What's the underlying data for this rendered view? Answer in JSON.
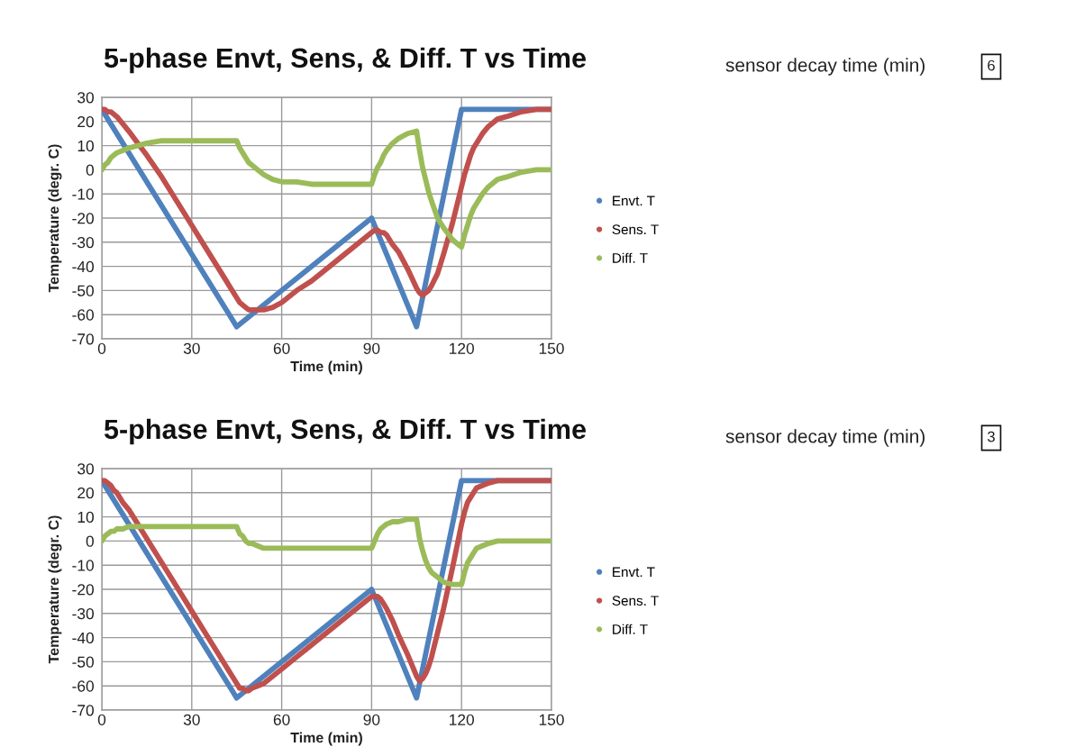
{
  "chart_data": [
    {
      "type": "line",
      "title": "5-phase Envt, Sens, & Diff. T vs Time",
      "xlabel": "Time (min)",
      "ylabel": "Temperature (degr. C)",
      "xlim": [
        0,
        150
      ],
      "ylim": [
        -70,
        30
      ],
      "xticks": [
        0,
        30,
        60,
        90,
        120,
        150
      ],
      "yticks": [
        -70,
        -60,
        -50,
        -40,
        -30,
        -20,
        -10,
        0,
        10,
        20,
        30
      ],
      "grid": true,
      "legend": "right",
      "series": [
        {
          "name": "Envt. T",
          "color": "#4f81bd",
          "x": [
            0,
            45,
            90,
            105,
            120,
            150
          ],
          "values": [
            25,
            -65,
            -20,
            -65,
            25,
            25
          ]
        },
        {
          "name": "Sens. T",
          "color": "#c0504d",
          "x": [
            0,
            1,
            2,
            3,
            4,
            5,
            7,
            9,
            12,
            15,
            20,
            25,
            30,
            35,
            40,
            45,
            46,
            47,
            48,
            49,
            50,
            52,
            54,
            57,
            60,
            65,
            70,
            80,
            90,
            91,
            92,
            93,
            94,
            95,
            97,
            99,
            102,
            105,
            106,
            107,
            108,
            109,
            110,
            112,
            114,
            117,
            120,
            121,
            122,
            123,
            124,
            125,
            127,
            129,
            132,
            135,
            140,
            145,
            150
          ],
          "values": [
            25,
            25,
            24,
            24,
            23,
            22,
            19,
            16,
            11,
            6,
            -3,
            -13,
            -23,
            -33,
            -43,
            -53,
            -55,
            -56,
            -57,
            -58,
            -58,
            -58,
            -58,
            -57,
            -55,
            -50,
            -46,
            -36,
            -26,
            -25,
            -25,
            -26,
            -26,
            -27,
            -31,
            -34,
            -41,
            -49,
            -51,
            -52,
            -51,
            -50,
            -48,
            -43,
            -35,
            -22,
            -7,
            -2,
            2,
            6,
            9,
            11,
            15,
            18,
            21,
            22,
            24,
            25,
            25
          ]
        },
        {
          "name": "Diff. T",
          "color": "#9bbb59",
          "x": [
            0,
            1,
            2,
            3,
            4,
            5,
            7,
            9,
            12,
            15,
            20,
            25,
            30,
            35,
            40,
            45,
            46,
            47,
            48,
            49,
            50,
            52,
            54,
            57,
            60,
            65,
            70,
            80,
            90,
            91,
            92,
            93,
            94,
            95,
            97,
            99,
            102,
            105,
            106,
            107,
            108,
            109,
            110,
            112,
            114,
            117,
            120,
            121,
            122,
            123,
            124,
            125,
            127,
            129,
            132,
            135,
            140,
            145,
            150
          ],
          "values": [
            0,
            2,
            3,
            5,
            6,
            7,
            8,
            9,
            10,
            11,
            12,
            12,
            12,
            12,
            12,
            12,
            9,
            7,
            5,
            3,
            2,
            0,
            -2,
            -4,
            -5,
            -5,
            -6,
            -6,
            -6,
            -2,
            1,
            3,
            6,
            8,
            11,
            13,
            15,
            16,
            8,
            1,
            -4,
            -9,
            -13,
            -20,
            -24,
            -29,
            -32,
            -27,
            -23,
            -19,
            -16,
            -14,
            -10,
            -7,
            -4,
            -3,
            -1,
            0,
            0
          ]
        }
      ],
      "annotations": [
        "sensor decay time (min)",
        "6"
      ]
    },
    {
      "type": "line",
      "title": "5-phase Envt, Sens, & Diff. T vs Time",
      "xlabel": "Time (min)",
      "ylabel": "Temperature (degr. C)",
      "xlim": [
        0,
        150
      ],
      "ylim": [
        -70,
        30
      ],
      "xticks": [
        0,
        30,
        60,
        90,
        120,
        150
      ],
      "yticks": [
        -70,
        -60,
        -50,
        -40,
        -30,
        -20,
        -10,
        0,
        10,
        20,
        30
      ],
      "grid": true,
      "legend": "right",
      "series": [
        {
          "name": "Envt. T",
          "color": "#4f81bd",
          "x": [
            0,
            45,
            90,
            105,
            120,
            150
          ],
          "values": [
            25,
            -65,
            -20,
            -65,
            25,
            25
          ]
        },
        {
          "name": "Sens. T",
          "color": "#c0504d",
          "x": [
            0,
            1,
            2,
            3,
            4,
            5,
            7,
            9,
            12,
            15,
            20,
            25,
            30,
            35,
            40,
            45,
            46,
            47,
            48,
            49,
            50,
            52,
            54,
            57,
            60,
            65,
            70,
            80,
            90,
            91,
            92,
            93,
            94,
            95,
            97,
            99,
            102,
            105,
            106,
            107,
            108,
            109,
            110,
            112,
            114,
            117,
            120,
            121,
            122,
            123,
            124,
            125,
            127,
            129,
            132,
            135,
            140,
            145,
            150
          ],
          "values": [
            25,
            25,
            24,
            23,
            21,
            20,
            16,
            13,
            7,
            1,
            -9,
            -19,
            -29,
            -39,
            -49,
            -59,
            -61,
            -61,
            -62,
            -62,
            -61,
            -60,
            -59,
            -56,
            -53,
            -48,
            -43,
            -33,
            -23,
            -23,
            -23,
            -24,
            -26,
            -28,
            -33,
            -39,
            -47,
            -56,
            -58,
            -57,
            -55,
            -52,
            -48,
            -38,
            -28,
            -11,
            7,
            12,
            16,
            18,
            20,
            22,
            23,
            24,
            25,
            25,
            25,
            25,
            25
          ]
        },
        {
          "name": "Diff. T",
          "color": "#9bbb59",
          "x": [
            0,
            1,
            2,
            3,
            4,
            5,
            7,
            9,
            12,
            15,
            20,
            25,
            30,
            35,
            40,
            45,
            46,
            47,
            48,
            49,
            50,
            52,
            54,
            57,
            60,
            65,
            70,
            80,
            90,
            91,
            92,
            93,
            94,
            95,
            97,
            99,
            102,
            105,
            106,
            107,
            108,
            109,
            110,
            112,
            114,
            117,
            120,
            121,
            122,
            123,
            124,
            125,
            127,
            129,
            132,
            135,
            140,
            145,
            150
          ],
          "values": [
            0,
            2,
            3,
            4,
            4,
            5,
            5,
            6,
            6,
            6,
            6,
            6,
            6,
            6,
            6,
            6,
            3,
            2,
            0,
            -1,
            -1,
            -2,
            -3,
            -3,
            -3,
            -3,
            -3,
            -3,
            -3,
            0,
            3,
            5,
            6,
            7,
            8,
            8,
            9,
            9,
            1,
            -4,
            -8,
            -11,
            -13,
            -15,
            -17,
            -18,
            -18,
            -13,
            -9,
            -7,
            -5,
            -3,
            -2,
            -1,
            0,
            0,
            0,
            0,
            0
          ]
        }
      ],
      "annotations": [
        "sensor decay time (min)",
        "3"
      ]
    }
  ]
}
